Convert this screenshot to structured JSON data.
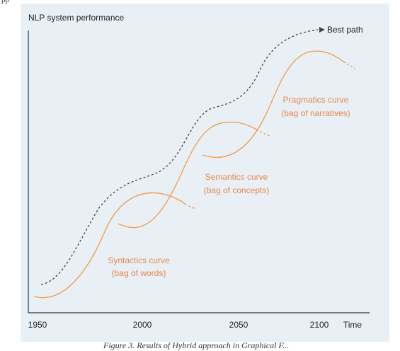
{
  "page_top_fragment": "pp",
  "caption_fragment": "Figure 3. Results of Hybrid approach in Graphical F...",
  "figure": {
    "y_axis_label": "NLP system performance",
    "x_axis_label": "Time",
    "x_ticks": [
      "1950",
      "2000",
      "2050",
      "2100"
    ],
    "x_tick_values": [
      1950,
      2000,
      2050,
      2100
    ],
    "best_path_label": "Best path",
    "curves": [
      {
        "id": "syntactics",
        "name": "Syntactics curve",
        "sub": "(bag of words)"
      },
      {
        "id": "semantics",
        "name": "Semantics curve",
        "sub": "(bag of concepts)"
      },
      {
        "id": "pragmatics",
        "name": "Pragmatics curve",
        "sub": "(bag of narratives)"
      }
    ]
  },
  "colors": {
    "background": "#e8f0f6",
    "axis": "#333333",
    "curve": "#f0a050",
    "curve_label": "#e8884a",
    "best_path": "#444444",
    "text": "#222222"
  }
}
